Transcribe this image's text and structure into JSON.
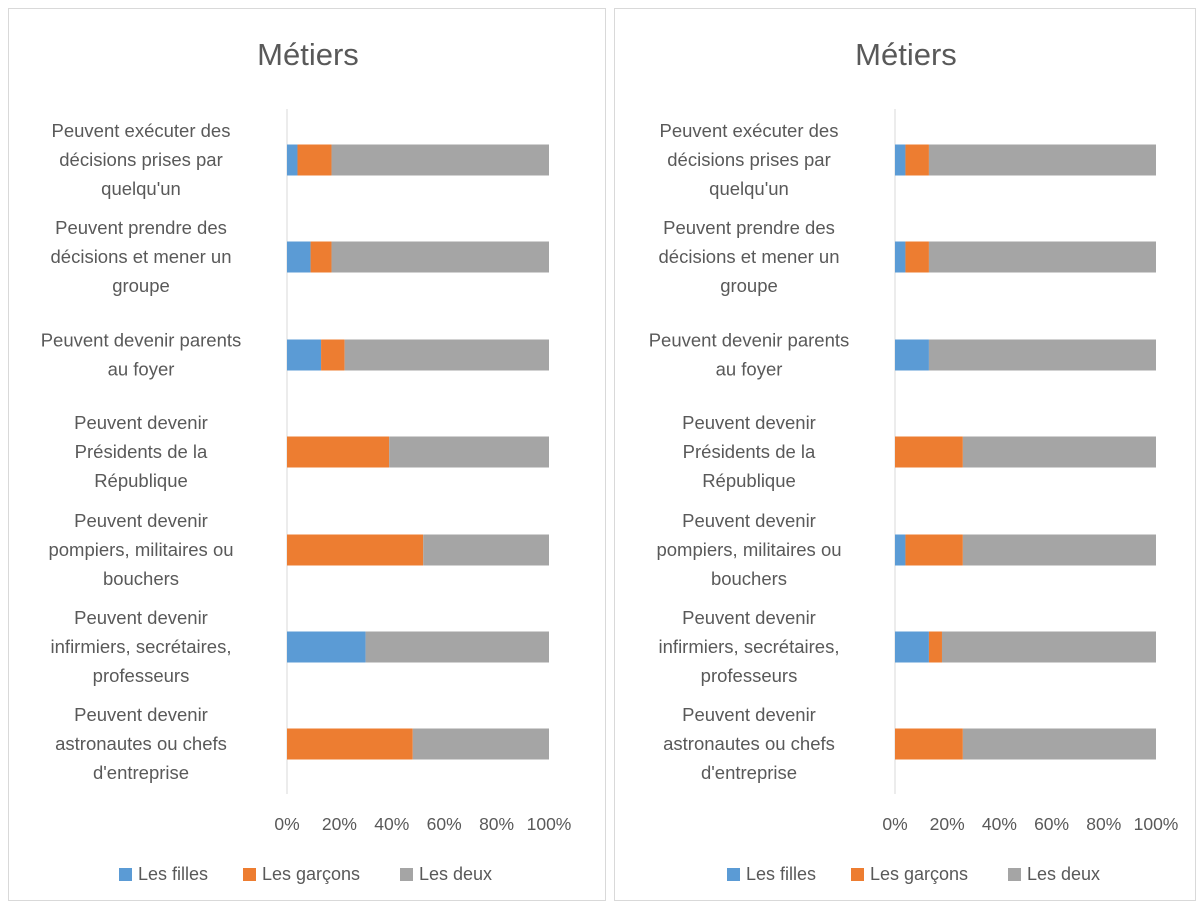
{
  "colors": {
    "Les filles": "#5b9bd5",
    "Les garçons": "#ed7d31",
    "Les deux": "#a5a5a5"
  },
  "chart_data": [
    {
      "type": "bar",
      "orientation": "horizontal",
      "stacked": "percent",
      "title": "Métiers",
      "categories": [
        "Peuvent exécuter des décisions prises par quelqu'un",
        "Peuvent prendre des décisions et mener un groupe",
        "Peuvent devenir parents au foyer",
        "Peuvent devenir Présidents de la République",
        "Peuvent devenir pompiers, militaires ou bouchers",
        "Peuvent devenir infirmiers, secrétaires, professeurs",
        "Peuvent devenir astronautes ou chefs d'entreprise"
      ],
      "category_lines": [
        [
          "Peuvent exécuter des",
          "décisions prises par",
          "quelqu'un"
        ],
        [
          "Peuvent prendre des",
          "décisions et mener un",
          "groupe"
        ],
        [
          "Peuvent devenir parents",
          "au foyer"
        ],
        [
          "Peuvent devenir",
          "Présidents de la",
          "République"
        ],
        [
          "Peuvent devenir",
          "pompiers, militaires ou",
          "bouchers"
        ],
        [
          "Peuvent devenir",
          "infirmiers, secrétaires,",
          "professeurs"
        ],
        [
          "Peuvent devenir",
          "astronautes ou chefs",
          "d'entreprise"
        ]
      ],
      "series": [
        {
          "name": "Les filles",
          "values": [
            4,
            9,
            13,
            0,
            0,
            30,
            0
          ]
        },
        {
          "name": "Les garçons",
          "values": [
            13,
            8,
            9,
            39,
            52,
            0,
            48
          ]
        },
        {
          "name": "Les deux",
          "values": [
            83,
            83,
            78,
            61,
            48,
            70,
            52
          ]
        }
      ],
      "xticks": [
        "0%",
        "20%",
        "40%",
        "60%",
        "80%",
        "100%"
      ],
      "xlim": [
        0,
        100
      ],
      "legend": "bottom",
      "grid": false
    },
    {
      "type": "bar",
      "orientation": "horizontal",
      "stacked": "percent",
      "title": "Métiers",
      "categories": [
        "Peuvent exécuter des décisions prises par quelqu'un",
        "Peuvent prendre des décisions et mener un groupe",
        "Peuvent devenir parents au foyer",
        "Peuvent devenir Présidents de la République",
        "Peuvent devenir pompiers, militaires ou bouchers",
        "Peuvent devenir infirmiers, secrétaires, professeurs",
        "Peuvent devenir astronautes ou chefs d'entreprise"
      ],
      "category_lines": [
        [
          "Peuvent exécuter des",
          "décisions prises par",
          "quelqu'un"
        ],
        [
          "Peuvent prendre des",
          "décisions et mener un",
          "groupe"
        ],
        [
          "Peuvent devenir parents",
          "au foyer"
        ],
        [
          "Peuvent devenir",
          "Présidents de la",
          "République"
        ],
        [
          "Peuvent devenir",
          "pompiers, militaires ou",
          "bouchers"
        ],
        [
          "Peuvent devenir",
          "infirmiers, secrétaires,",
          "professeurs"
        ],
        [
          "Peuvent devenir",
          "astronautes ou chefs",
          "d'entreprise"
        ]
      ],
      "series": [
        {
          "name": "Les filles",
          "values": [
            4,
            4,
            13,
            0,
            4,
            13,
            0
          ]
        },
        {
          "name": "Les garçons",
          "values": [
            9,
            9,
            0,
            26,
            22,
            5,
            26
          ]
        },
        {
          "name": "Les deux",
          "values": [
            87,
            87,
            87,
            74,
            74,
            82,
            74
          ]
        }
      ],
      "xticks": [
        "0%",
        "20%",
        "40%",
        "60%",
        "80%",
        "100%"
      ],
      "xlim": [
        0,
        100
      ],
      "legend": "bottom",
      "grid": false
    }
  ]
}
